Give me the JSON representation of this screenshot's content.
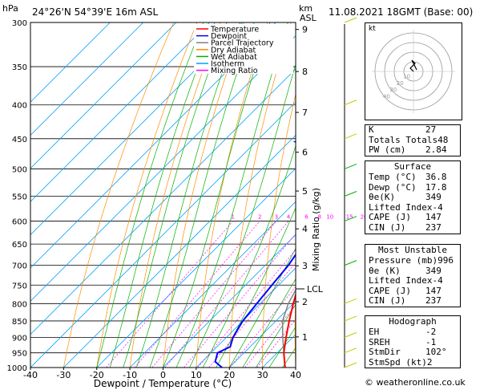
{
  "header": {
    "pressure_unit": "hPa",
    "location": "24°26'N  54°39'E  16m  ASL",
    "height_unit": "km",
    "height_unit2": "ASL",
    "datetime": "11.08.2021  18GMT  (Base: 00)"
  },
  "chart_data": {
    "type": "skew-t",
    "xlabel": "Dewpoint / Temperature (°C)",
    "ylabel_right": "Mixing Ratio (g/kg)",
    "x_ticks": [
      -40,
      -30,
      -20,
      -10,
      0,
      10,
      20,
      30,
      40
    ],
    "pressure_levels": [
      300,
      350,
      400,
      450,
      500,
      550,
      600,
      650,
      700,
      750,
      800,
      850,
      900,
      950,
      1000
    ],
    "height_ticks_km": [
      1,
      2,
      3,
      4,
      5,
      6,
      7,
      8,
      9
    ],
    "lcl_label": "LCL",
    "lcl_pressure": 760,
    "mixing_ratio_labels": [
      "1",
      "2",
      "3",
      "4",
      "6",
      "8",
      "10",
      "15",
      "20",
      "25"
    ],
    "mixing_ratio_values": [
      1,
      2,
      3,
      4,
      6,
      8,
      10,
      15,
      20,
      25
    ],
    "legend": [
      {
        "name": "Temperature",
        "color": "#ff0000"
      },
      {
        "name": "Dewpoint",
        "color": "#0000ff"
      },
      {
        "name": "Parcel Trajectory",
        "color": "#808080"
      },
      {
        "name": "Dry Adiabat",
        "color": "#ff8c00"
      },
      {
        "name": "Wet Adiabat",
        "color": "#00b000"
      },
      {
        "name": "Isotherm",
        "color": "#00a0ff"
      },
      {
        "name": "Mixing Ratio",
        "color": "#ff00ff"
      }
    ],
    "temperature": {
      "p": [
        1000,
        950,
        900,
        850,
        800,
        750,
        700,
        650,
        620,
        600,
        550,
        500,
        480,
        450,
        400,
        350
      ],
      "t": [
        36.8,
        32,
        28,
        24,
        20,
        16,
        12,
        7,
        4,
        2,
        -3,
        -8,
        -9,
        -12,
        -18,
        -26
      ]
    },
    "dewpoint": {
      "p": [
        1000,
        980,
        950,
        930,
        900,
        850,
        800,
        750,
        700,
        650,
        630,
        600,
        580,
        570,
        560,
        550,
        540,
        520,
        500,
        490,
        480,
        470,
        460,
        455,
        450,
        440,
        420,
        410,
        400,
        380,
        350,
        340,
        320,
        300
      ],
      "t": [
        17.8,
        14,
        12,
        14,
        12,
        10,
        9,
        8,
        7,
        5,
        2,
        -1,
        0,
        3,
        -1,
        -3,
        -2,
        -4,
        -6,
        -6,
        -5,
        -23,
        -25,
        -28,
        -22,
        -30,
        -30,
        -24,
        -28,
        -30,
        -37,
        -39,
        -40,
        -40
      ]
    },
    "parcel": {
      "p": [
        1000,
        950,
        900,
        850,
        800,
        760,
        700,
        650,
        600,
        550,
        500,
        450,
        400,
        370
      ],
      "t": [
        36.8,
        32,
        27,
        22,
        18.5,
        16.5,
        13,
        9,
        5,
        0,
        -5,
        -11,
        -18,
        -23
      ]
    },
    "wind_barbs_pressure": [
      1000,
      950,
      900,
      850,
      800,
      700,
      600,
      550,
      500,
      450,
      400,
      300
    ]
  },
  "hodograph": {
    "unit_label": "kt",
    "ring_labels": [
      "10",
      "20",
      "30",
      "40"
    ]
  },
  "indices": {
    "rows": [
      {
        "label": "K",
        "value": "27"
      },
      {
        "label": "Totals Totals",
        "value": "48"
      },
      {
        "label": "PW (cm)",
        "value": "2.84"
      }
    ]
  },
  "surface": {
    "title": "Surface",
    "rows": [
      {
        "label": "Temp (°C)",
        "value": "36.8"
      },
      {
        "label": "Dewp (°C)",
        "value": "17.8"
      },
      {
        "label": "θe(K)",
        "value": "349"
      },
      {
        "label": "Lifted Index",
        "value": "-4"
      },
      {
        "label": "CAPE (J)",
        "value": "147"
      },
      {
        "label": "CIN (J)",
        "value": "237"
      }
    ]
  },
  "most_unstable": {
    "title": "Most Unstable",
    "rows": [
      {
        "label": "Pressure (mb)",
        "value": "996"
      },
      {
        "label": "θe (K)",
        "value": "349"
      },
      {
        "label": "Lifted Index",
        "value": "-4"
      },
      {
        "label": "CAPE (J)",
        "value": "147"
      },
      {
        "label": "CIN (J)",
        "value": "237"
      }
    ]
  },
  "hodograph_table": {
    "title": "Hodograph",
    "rows": [
      {
        "label": "EH",
        "value": "-2"
      },
      {
        "label": "SREH",
        "value": "-1"
      },
      {
        "label": "StmDir",
        "value": "102°"
      },
      {
        "label": "StmSpd (kt)",
        "value": "2"
      }
    ]
  },
  "credit": "© weatheronline.co.uk"
}
